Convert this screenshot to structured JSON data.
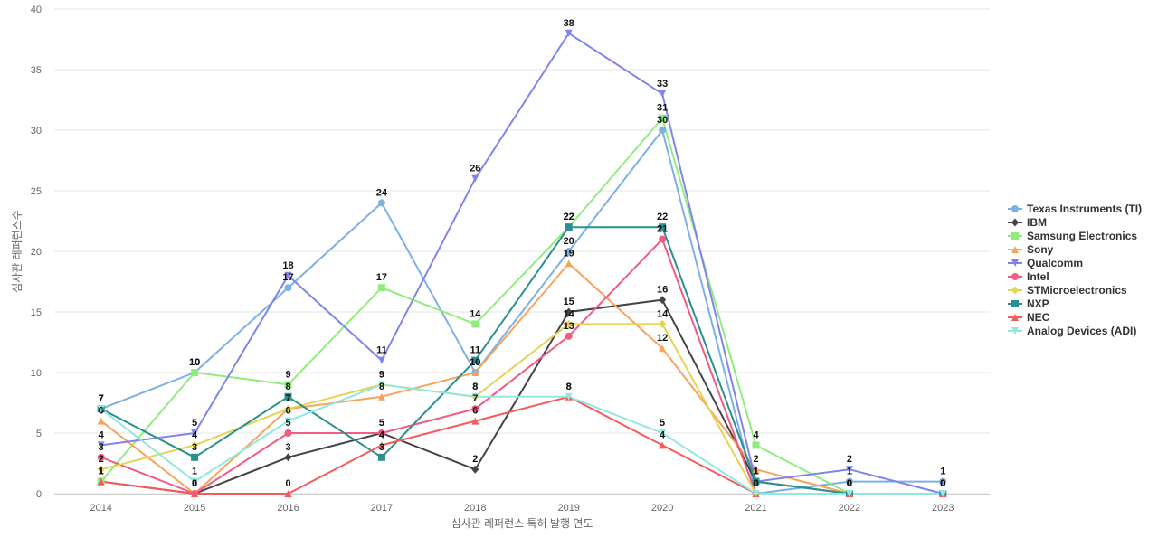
{
  "chart_data": {
    "type": "line",
    "title": "",
    "xlabel": "심사관 레퍼런스 특허 발행 연도",
    "ylabel": "심사관 레퍼런스수",
    "x": [
      2014,
      2015,
      2016,
      2017,
      2018,
      2019,
      2020,
      2021,
      2022,
      2023
    ],
    "ylim": [
      0,
      40
    ],
    "yticks": [
      0,
      5,
      10,
      15,
      20,
      25,
      30,
      35,
      40
    ],
    "grid": true,
    "legend_position": "right",
    "series": [
      {
        "name": "Texas Instruments (TI)",
        "color": "#7cb0e6",
        "marker": "circle",
        "values": [
          7,
          10,
          17,
          24,
          10,
          20,
          30,
          0,
          1,
          1
        ]
      },
      {
        "name": "IBM",
        "color": "#434348",
        "marker": "diamond",
        "values": [
          1,
          0,
          3,
          5,
          2,
          15,
          16,
          1,
          0,
          0
        ]
      },
      {
        "name": "Samsung Electronics",
        "color": "#90ed7d",
        "marker": "square",
        "values": [
          1,
          10,
          9,
          17,
          14,
          22,
          31,
          4,
          0,
          0
        ]
      },
      {
        "name": "Sony",
        "color": "#f7a35c",
        "marker": "triangle",
        "values": [
          6,
          0,
          7,
          8,
          10,
          19,
          12,
          2,
          0,
          0
        ]
      },
      {
        "name": "Qualcomm",
        "color": "#8085e9",
        "marker": "triangle-down",
        "values": [
          4,
          5,
          18,
          11,
          26,
          38,
          33,
          1,
          2,
          0
        ]
      },
      {
        "name": "Intel",
        "color": "#f15c80",
        "marker": "circle",
        "values": [
          3,
          0,
          5,
          5,
          7,
          13,
          21,
          0,
          0,
          0
        ]
      },
      {
        "name": "STMicroelectronics",
        "color": "#e4d354",
        "marker": "diamond",
        "values": [
          2,
          4,
          7,
          9,
          8,
          14,
          14,
          0,
          0,
          0
        ]
      },
      {
        "name": "NXP",
        "color": "#2b908f",
        "marker": "square",
        "values": [
          7,
          3,
          8,
          3,
          11,
          22,
          22,
          1,
          0,
          0
        ]
      },
      {
        "name": "NEC",
        "color": "#f45b5b",
        "marker": "triangle",
        "values": [
          1,
          0,
          0,
          4,
          6,
          8,
          4,
          0,
          0,
          0
        ]
      },
      {
        "name": "Analog Devices (ADI)",
        "color": "#91e8e1",
        "marker": "triangle-down",
        "values": [
          7,
          1,
          6,
          9,
          8,
          8,
          5,
          0,
          0,
          0
        ]
      }
    ]
  }
}
